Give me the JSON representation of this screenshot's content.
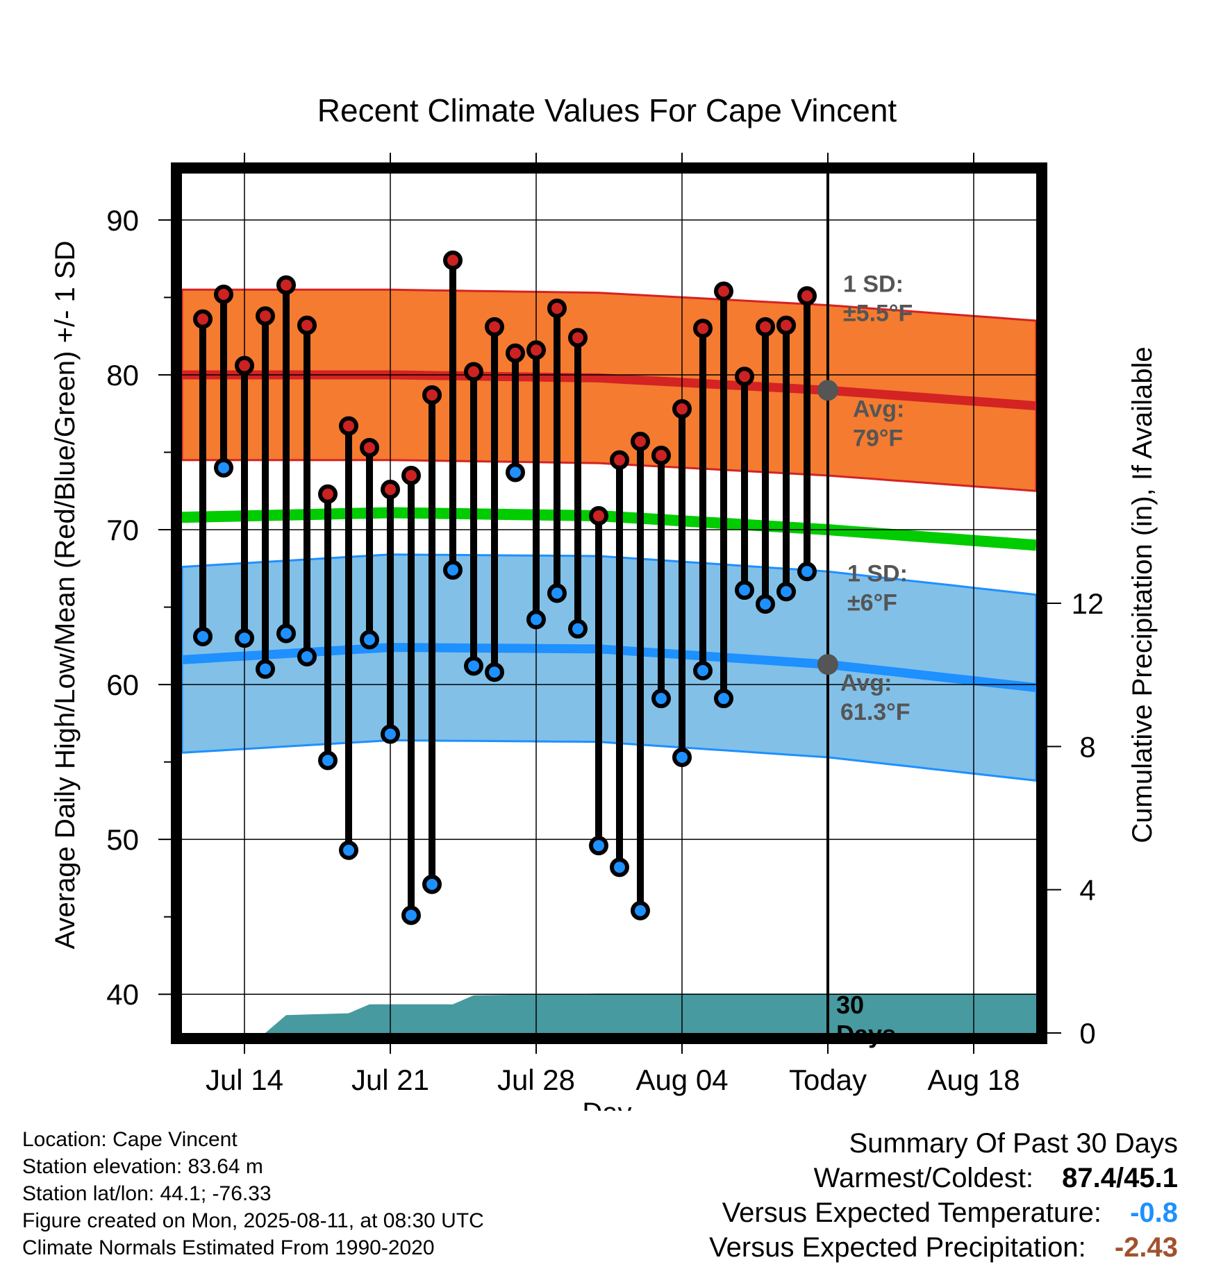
{
  "chart_data": {
    "type": "line",
    "title": "Recent Climate Values For Cape Vincent",
    "xlabel": "Day",
    "ylabel": "Average Daily High/Low/Mean (Red/Blue/Green) +/- 1 SD",
    "y2label": "Cumulative Precipitation (in), If Available",
    "x_ticks": [
      "Jul 14",
      "Jul 21",
      "Jul 28",
      "Aug 04",
      "Today",
      "Aug 18"
    ],
    "y_ticks": [
      "40",
      "50",
      "60",
      "70",
      "80",
      "90"
    ],
    "y2_ticks": [
      "0",
      "4",
      "8",
      "12"
    ],
    "ylim": [
      37.5,
      93
    ],
    "y2lim": [
      0,
      24
    ],
    "x_range": [
      "2025-07-11",
      "2025-08-21"
    ],
    "today": "2025-08-11",
    "days": [
      "2025-07-12",
      "2025-07-13",
      "2025-07-14",
      "2025-07-15",
      "2025-07-16",
      "2025-07-17",
      "2025-07-18",
      "2025-07-19",
      "2025-07-20",
      "2025-07-21",
      "2025-07-22",
      "2025-07-23",
      "2025-07-24",
      "2025-07-25",
      "2025-07-26",
      "2025-07-27",
      "2025-07-28",
      "2025-07-29",
      "2025-07-30",
      "2025-07-31",
      "2025-08-01",
      "2025-08-02",
      "2025-08-03",
      "2025-08-04",
      "2025-08-05",
      "2025-08-06",
      "2025-08-07",
      "2025-08-08",
      "2025-08-09",
      "2025-08-10"
    ],
    "highs": [
      83.6,
      85.2,
      80.6,
      83.8,
      85.8,
      83.2,
      72.3,
      76.7,
      75.3,
      72.6,
      73.5,
      78.7,
      87.4,
      80.2,
      83.1,
      81.4,
      81.6,
      84.3,
      82.4,
      70.9,
      74.5,
      75.7,
      74.8,
      77.8,
      83.0,
      85.4,
      79.9,
      83.1,
      83.2,
      85.1
    ],
    "lows": [
      63.1,
      74.0,
      63.0,
      61.0,
      63.3,
      61.8,
      55.1,
      49.3,
      62.9,
      56.8,
      45.1,
      47.1,
      67.4,
      61.2,
      60.8,
      73.7,
      64.2,
      65.9,
      63.6,
      49.6,
      48.2,
      45.4,
      59.1,
      55.3,
      60.9,
      59.1,
      66.1,
      65.2,
      66.0,
      67.3
    ],
    "normals": {
      "dates": [
        "2025-07-11",
        "2025-07-21",
        "2025-07-31",
        "2025-08-11",
        "2025-08-21"
      ],
      "high_avg": [
        80.0,
        80.0,
        79.8,
        79.0,
        78.0
      ],
      "high_sd": 5.5,
      "low_avg": [
        61.6,
        62.4,
        62.3,
        61.3,
        59.8
      ],
      "low_sd": 6,
      "mean_avg": [
        70.8,
        71.1,
        70.9,
        70.0,
        69.0
      ]
    },
    "precip": {
      "dates": [
        "2025-07-15",
        "2025-07-16",
        "2025-07-19",
        "2025-07-20",
        "2025-07-24",
        "2025-07-25",
        "2025-07-31",
        "2025-08-21"
      ],
      "values": [
        0,
        0.5,
        0.55,
        0.8,
        0.8,
        1.05,
        1.1,
        1.1
      ]
    },
    "annotations": {
      "high_sd_line1": "1 SD:",
      "high_sd_line2": "±5.5°F",
      "high_avg_line1": "Avg:",
      "high_avg_line2": "79°F",
      "low_sd_line1": "1 SD:",
      "low_sd_line2": "±6°F",
      "low_avg_line1": "Avg:",
      "low_avg_line2": "61.3°F",
      "days_line1": "30",
      "days_line2": "Days"
    },
    "colors": {
      "high_band": "#f47b30",
      "high_line": "#d42323",
      "low_band": "#82c0e8",
      "low_line": "#1e90ff",
      "mean_line": "#00cc00",
      "precip": "#479aa0",
      "high_point": "#cc2222",
      "low_point": "#1e90ff",
      "annotation": "#555555"
    },
    "grid": true
  },
  "footer": {
    "location": "Location: Cape Vincent",
    "elevation": "Station elevation: 83.64 m",
    "latlon": "Station lat/lon: 44.1; -76.33",
    "created": "Figure created on Mon, 2025-08-11, at 08:30 UTC",
    "normals": "Climate Normals Estimated From 1990-2020"
  },
  "summary": {
    "title": "Summary Of Past 30 Days",
    "warmest_label": "Warmest/Coldest:",
    "warmest_value": "87.4/45.1",
    "temp_label": "Versus Expected Temperature:",
    "temp_value": "-0.8",
    "temp_color": "#1e90ff",
    "precip_label": "Versus Expected Precipitation:",
    "precip_value": "-2.43",
    "precip_color": "#a0522d"
  }
}
